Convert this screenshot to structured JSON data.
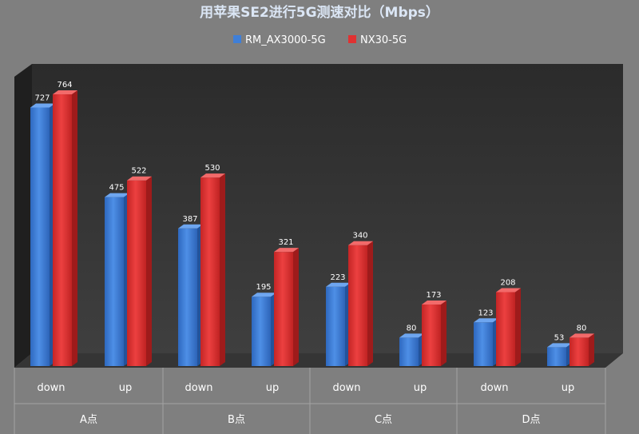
{
  "chart_data": {
    "type": "bar",
    "title": "用苹果SE2进行5G测速对比（Mbps）",
    "xlabel": "",
    "ylabel": "",
    "ylim": [
      0,
      800
    ],
    "grid": false,
    "legend_position": "top",
    "categories": [
      "down",
      "up",
      "down",
      "up",
      "down",
      "up",
      "down",
      "up"
    ],
    "groups": [
      "A点",
      "B点",
      "C点",
      "D点"
    ],
    "series": [
      {
        "name": "RM_AX3000-5G",
        "color": "#3f7fd8",
        "values": [
          727,
          475,
          387,
          195,
          223,
          80,
          123,
          53
        ]
      },
      {
        "name": "NX30-5G",
        "color": "#e03232",
        "values": [
          764,
          522,
          530,
          321,
          340,
          173,
          208,
          80
        ]
      }
    ]
  }
}
